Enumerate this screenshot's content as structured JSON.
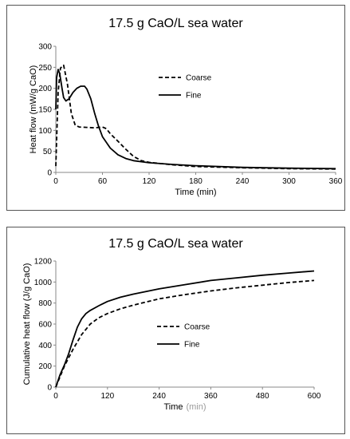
{
  "chart_data": [
    {
      "type": "line",
      "title": "17.5 g CaO/L sea water",
      "xlabel": "Time (min)",
      "ylabel": "Heat flow (mW/g CaO)",
      "xlim": [
        0,
        360
      ],
      "ylim": [
        0,
        300
      ],
      "xticks": [
        "0",
        "60",
        "120",
        "180",
        "240",
        "300",
        "360"
      ],
      "yticks": [
        "0",
        "50",
        "100",
        "150",
        "200",
        "250",
        "300"
      ],
      "legend_position": "upper-right",
      "series": [
        {
          "name": "Coarse",
          "style": "dashed",
          "x": [
            0,
            3,
            6,
            10,
            15,
            20,
            25,
            30,
            40,
            50,
            55,
            60,
            65,
            70,
            80,
            90,
            100,
            110,
            120,
            150,
            180,
            240,
            300,
            360
          ],
          "y": [
            15,
            190,
            248,
            255,
            210,
            140,
            112,
            108,
            107,
            106,
            107,
            108,
            104,
            92,
            74,
            55,
            38,
            28,
            24,
            18,
            14,
            11,
            9,
            8
          ]
        },
        {
          "name": "Fine",
          "style": "solid",
          "x": [
            0,
            1,
            3,
            5,
            8,
            10,
            13,
            17,
            22,
            27,
            32,
            37,
            40,
            45,
            50,
            55,
            60,
            70,
            80,
            90,
            100,
            120,
            150,
            180,
            240,
            300,
            360
          ],
          "y": [
            150,
            225,
            245,
            235,
            200,
            178,
            170,
            175,
            190,
            200,
            205,
            205,
            198,
            175,
            140,
            110,
            85,
            58,
            42,
            33,
            28,
            23,
            19,
            16,
            12,
            10,
            9
          ]
        }
      ]
    },
    {
      "type": "line",
      "title": "17.5 g CaO/L sea water",
      "xlabel_main": "Time",
      "xlabel_unit": "(min)",
      "ylabel": "Cumulative heat flow (J/g CaO)",
      "xlim": [
        0,
        600
      ],
      "ylim": [
        0,
        1200
      ],
      "xticks": [
        "0",
        "120",
        "240",
        "360",
        "480",
        "600"
      ],
      "yticks": [
        "0",
        "200",
        "400",
        "600",
        "800",
        "1000",
        "1200"
      ],
      "legend_position": "center-right",
      "series": [
        {
          "name": "Coarse",
          "style": "dashed",
          "x": [
            0,
            10,
            20,
            40,
            60,
            80,
            100,
            120,
            150,
            180,
            240,
            300,
            360,
            420,
            480,
            540,
            600
          ],
          "y": [
            0,
            100,
            200,
            360,
            500,
            600,
            660,
            700,
            745,
            780,
            840,
            880,
            915,
            945,
            970,
            995,
            1015
          ]
        },
        {
          "name": "Fine",
          "style": "solid",
          "x": [
            0,
            10,
            20,
            30,
            40,
            50,
            60,
            70,
            80,
            100,
            120,
            150,
            180,
            240,
            300,
            360,
            420,
            480,
            540,
            600
          ],
          "y": [
            0,
            120,
            210,
            320,
            450,
            570,
            650,
            700,
            730,
            775,
            815,
            855,
            885,
            935,
            975,
            1015,
            1040,
            1065,
            1085,
            1105
          ]
        }
      ]
    }
  ]
}
